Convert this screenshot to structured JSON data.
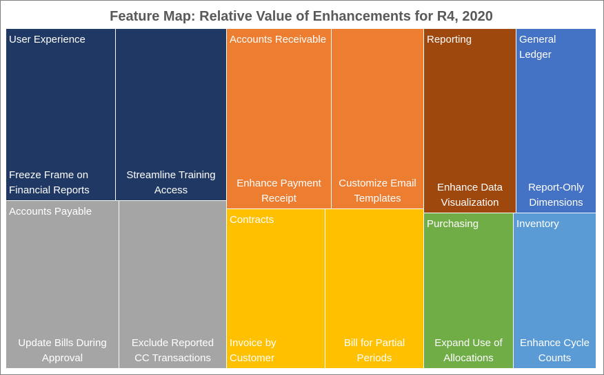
{
  "chart_data": {
    "type": "treemap",
    "title": "Feature Map: Relative Value of Enhancements for R4, 2020",
    "groups": [
      {
        "name": "User Experience",
        "color": "#203864",
        "items": [
          {
            "label": [
              "Freeze Frame on",
              "Financial Reports"
            ],
            "align": "left"
          },
          {
            "label": [
              "Streamline Training",
              "Access"
            ],
            "align": "center"
          }
        ]
      },
      {
        "name": "Accounts Payable",
        "color": "#a5a5a5",
        "items": [
          {
            "label": [
              "Update Bills During",
              "Approval"
            ],
            "align": "center"
          },
          {
            "label": [
              "Exclude Reported",
              "CC Transactions"
            ],
            "align": "center"
          }
        ]
      },
      {
        "name": "Accounts Receivable",
        "color": "#ed7d31",
        "items": [
          {
            "label": [
              "Enhance Payment",
              "Receipt"
            ],
            "align": "center"
          },
          {
            "label": [
              "Customize Email",
              "Templates"
            ],
            "align": "center"
          }
        ]
      },
      {
        "name": "Contracts",
        "color": "#ffc000",
        "items": [
          {
            "label": [
              "Invoice by",
              "Customer"
            ],
            "align": "left"
          },
          {
            "label": [
              "Bill for Partial",
              "Periods"
            ],
            "align": "center"
          }
        ]
      },
      {
        "name": "Reporting",
        "color": "#9e480e",
        "items": [
          {
            "label": [
              "Enhance Data",
              "Visualization"
            ],
            "align": "center"
          }
        ]
      },
      {
        "name": "General Ledger",
        "label": [
          "General",
          "Ledger"
        ],
        "color": "#4472c4",
        "items": [
          {
            "label": [
              "Report-Only",
              "Dimensions"
            ],
            "align": "center"
          }
        ]
      },
      {
        "name": "Purchasing",
        "color": "#70ad47",
        "items": [
          {
            "label": [
              "Expand Use of",
              "Allocations"
            ],
            "align": "center"
          }
        ]
      },
      {
        "name": "Inventory",
        "color": "#5b9bd5",
        "items": [
          {
            "label": [
              "Enhance Cycle",
              "Counts"
            ],
            "align": "center"
          }
        ]
      }
    ]
  }
}
